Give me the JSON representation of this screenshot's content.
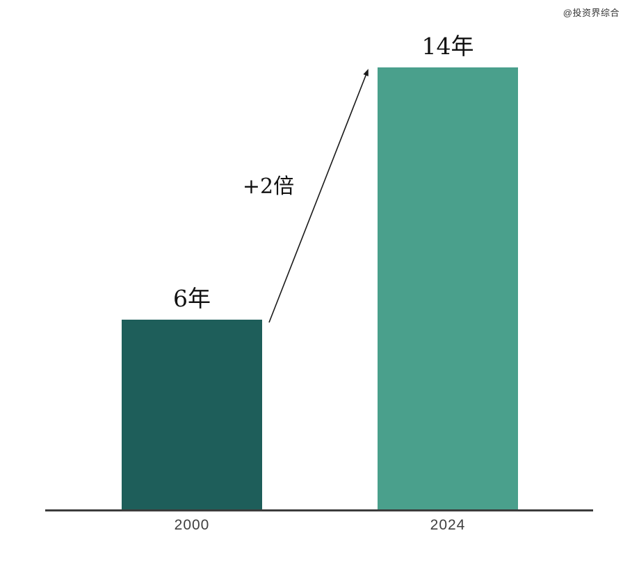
{
  "watermark": "@投资界综合",
  "chart_data": {
    "type": "bar",
    "title": "",
    "xlabel": "",
    "ylabel": "",
    "categories": [
      "2000",
      "2024"
    ],
    "values": [
      6,
      14
    ],
    "value_labels": [
      "6年",
      "14年"
    ],
    "annotation_label": "+2倍",
    "annotation_shape": "arrow-from-bar1-top-to-bar2-top",
    "bar_colors": [
      "#1E5E5A",
      "#4AA08C"
    ],
    "axis_line_color": "#3C3C3C",
    "label_text_color": "#111111",
    "tick_text_color": "#404040",
    "grid": false,
    "legend": "none",
    "y_axis": "hidden",
    "ylim": [
      0,
      14
    ]
  }
}
